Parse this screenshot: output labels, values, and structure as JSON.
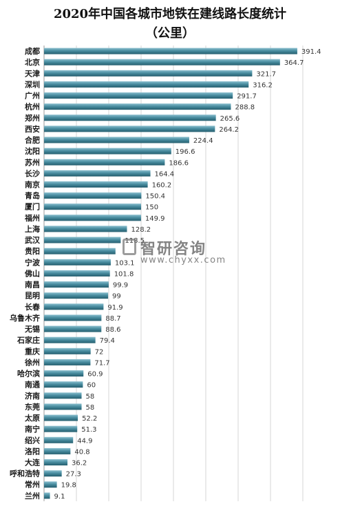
{
  "chart_data": {
    "type": "bar",
    "orientation": "horizontal",
    "title": "2020年中国各城市地铁在建线路长度统计",
    "subtitle": "（公里）",
    "categories": [
      "成都",
      "北京",
      "天津",
      "深圳",
      "广州",
      "杭州",
      "郑州",
      "西安",
      "合肥",
      "沈阳",
      "苏州",
      "长沙",
      "南京",
      "青岛",
      "厦门",
      "福州",
      "上海",
      "武汉",
      "贵阳",
      "宁波",
      "佛山",
      "南昌",
      "昆明",
      "长春",
      "乌鲁木齐",
      "无锡",
      "石家庄",
      "重庆",
      "徐州",
      "哈尔滨",
      "南通",
      "济南",
      "东莞",
      "太原",
      "南宁",
      "绍兴",
      "洛阳",
      "大连",
      "呼和浩特",
      "常州",
      "兰州"
    ],
    "values": [
      391.4,
      364.7,
      321.7,
      316.2,
      291.7,
      288.8,
      265.6,
      264.2,
      224.4,
      196.6,
      186.6,
      164.4,
      160.2,
      150.4,
      150,
      149.9,
      128.2,
      118.5,
      110.4,
      103.1,
      101.8,
      99.9,
      99,
      91.9,
      88.7,
      88.6,
      79.4,
      72,
      71.7,
      60.9,
      60,
      58,
      58,
      52.2,
      51.3,
      44.9,
      40.8,
      36.2,
      27.3,
      19.8,
      9.1
    ],
    "labels": [
      "391.4",
      "364.7",
      "321.7",
      "316.2",
      "291.7",
      "288.8",
      "265.6",
      "264.2",
      "224.4",
      "196.6",
      "186.6",
      "164.4",
      "160.2",
      "150.4",
      "150",
      "149.9",
      "128.2",
      "118.5",
      "",
      "103.1",
      "101.8",
      "99.9",
      "99",
      "91.9",
      "88.7",
      "88.6",
      "79.4",
      "72",
      "71.7",
      "60.9",
      "60",
      "58",
      "58",
      "52.2",
      "51.3",
      "44.9",
      "40.8",
      "36.2",
      "27.3",
      "19.8",
      "9.1"
    ],
    "xlim": [
      0,
      400
    ],
    "grid": true,
    "bar_color": "#3f8496"
  },
  "watermark": {
    "name": "智研咨询",
    "url": "www.chyxx.com"
  }
}
